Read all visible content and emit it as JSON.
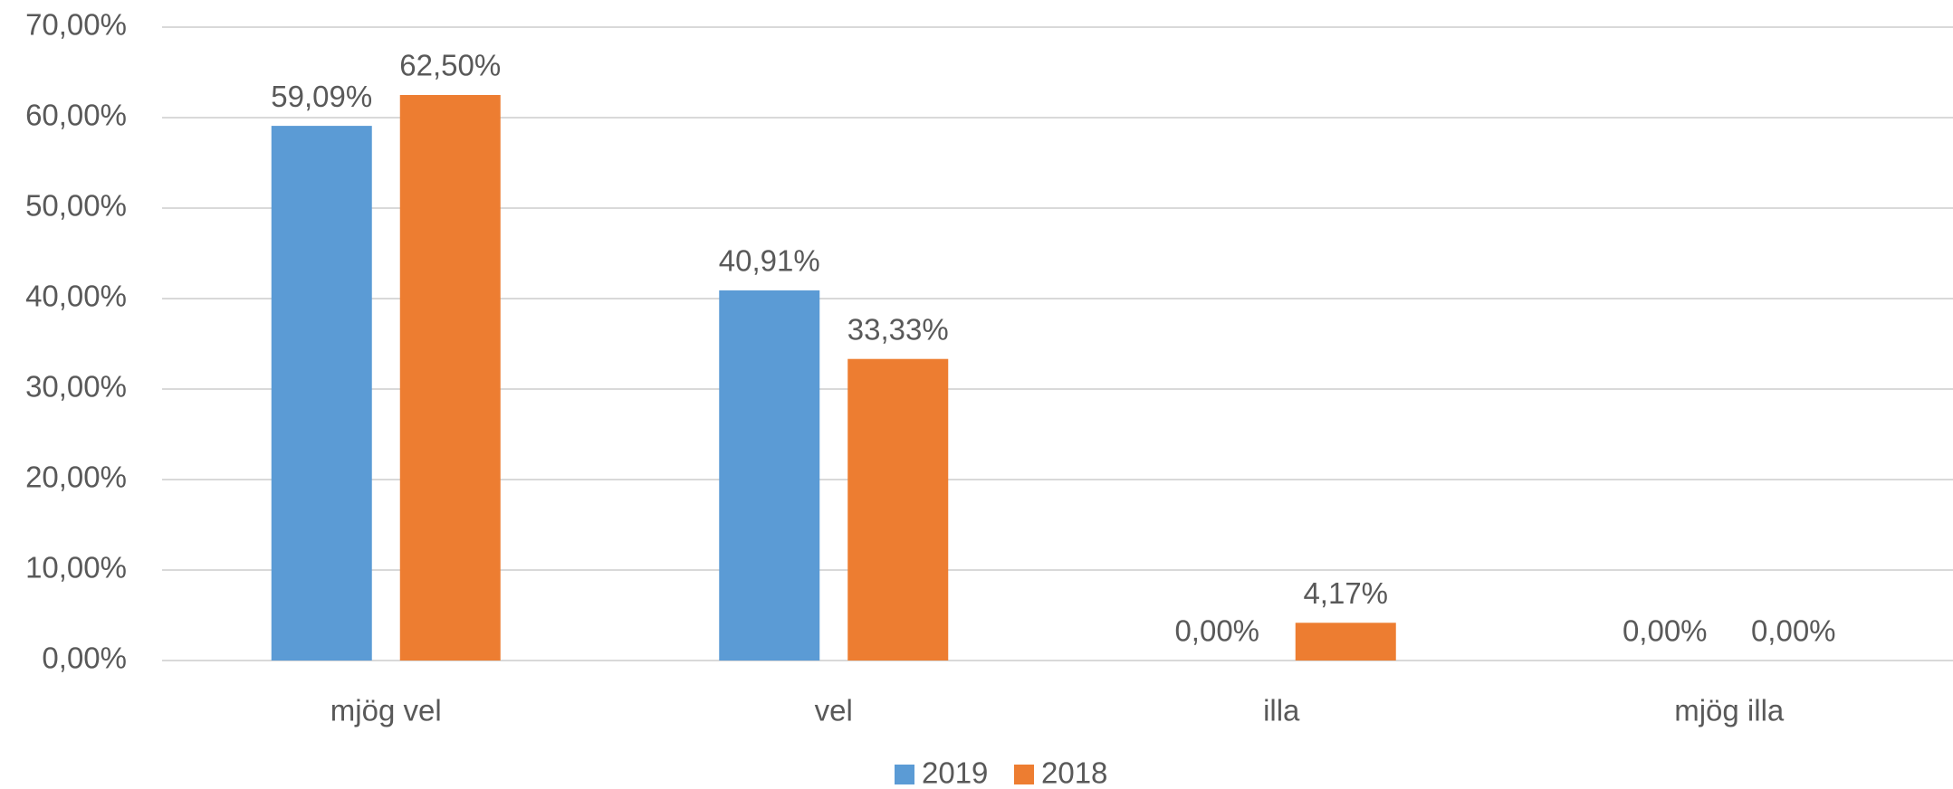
{
  "chart_data": {
    "type": "bar",
    "categories": [
      "mjög vel",
      "vel",
      "illa",
      "mjög illa"
    ],
    "series": [
      {
        "name": "2019",
        "color": "#5b9bd5",
        "values": [
          59.09,
          40.91,
          0,
          0
        ],
        "value_labels": [
          "59,09%",
          "40,91%",
          "0,00%",
          "0,00%"
        ]
      },
      {
        "name": "2018",
        "color": "#ed7d31",
        "values": [
          62.5,
          33.33,
          4.17,
          0
        ],
        "value_labels": [
          "62,50%",
          "33,33%",
          "4,17%",
          "0,00%"
        ]
      }
    ],
    "ylim": [
      0,
      70
    ],
    "yticks": [
      {
        "value": 0,
        "label": "0,00%"
      },
      {
        "value": 10,
        "label": "10,00%"
      },
      {
        "value": 20,
        "label": "20,00%"
      },
      {
        "value": 30,
        "label": "30,00%"
      },
      {
        "value": 40,
        "label": "40,00%"
      },
      {
        "value": 50,
        "label": "50,00%"
      },
      {
        "value": 60,
        "label": "60,00%"
      },
      {
        "value": 70,
        "label": "70,00%"
      }
    ],
    "grid": true,
    "legend": "bottom"
  }
}
